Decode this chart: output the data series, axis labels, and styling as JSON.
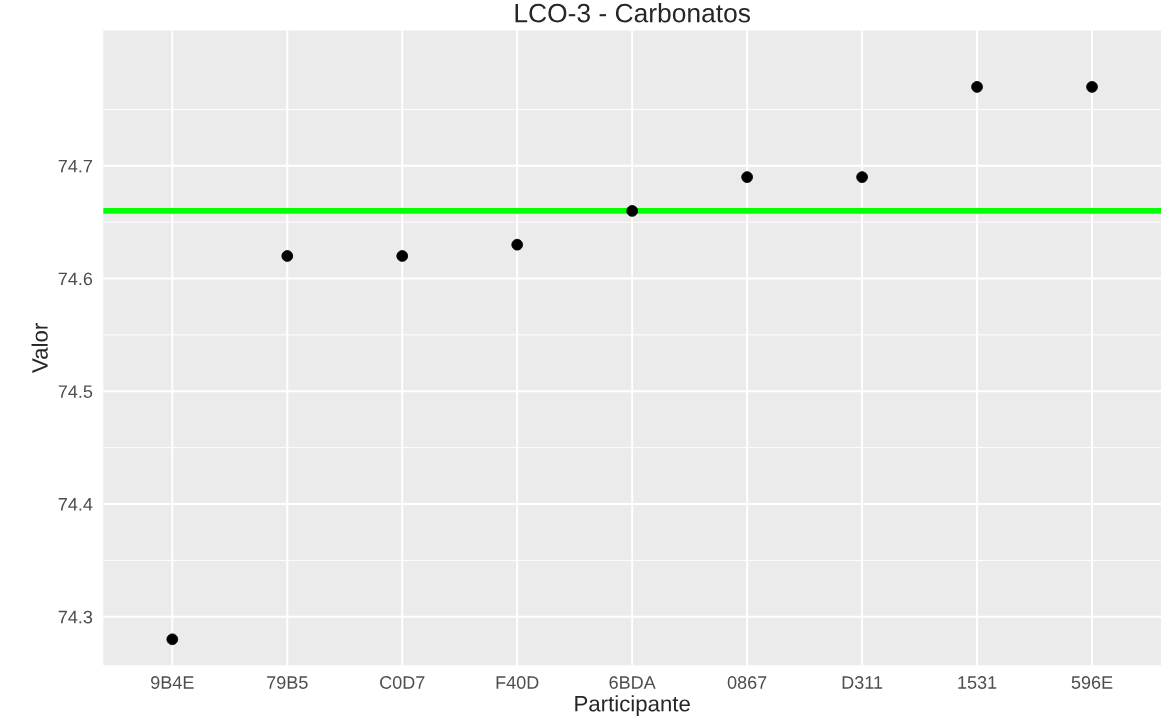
{
  "chart_data": {
    "type": "scatter",
    "title": "LCO-3 - Carbonatos",
    "xlabel": "Participante",
    "ylabel": "Valor",
    "categories": [
      "9B4E",
      "79B5",
      "C0D7",
      "F40D",
      "6BDA",
      "0867",
      "D311",
      "1531",
      "596E"
    ],
    "series": [
      {
        "color": "#000000",
        "values": [
          74.28,
          74.62,
          74.62,
          74.63,
          74.66,
          74.69,
          74.69,
          74.77,
          74.77
        ]
      }
    ],
    "ylim": [
      74.257,
      74.82
    ],
    "yticks": [
      74.3,
      74.4,
      74.5,
      74.6,
      74.7
    ],
    "ref_lines": [
      {
        "axis": "y",
        "value": 74.66,
        "color": "#00ff00",
        "line_style": "solid"
      }
    ],
    "grid": true,
    "marker": "circle",
    "legend": false
  }
}
